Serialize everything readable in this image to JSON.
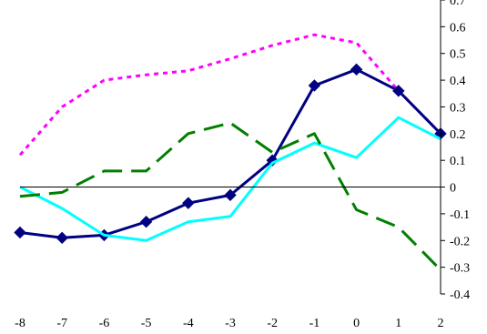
{
  "chart_data": {
    "type": "line",
    "title": "",
    "xlabel": "",
    "ylabel": "",
    "x": [
      -8,
      -7,
      -6,
      -5,
      -4,
      -3,
      -2,
      -1,
      0,
      1,
      2
    ],
    "x_tick_labels": [
      "-8",
      "-7",
      "-6",
      "-5",
      "-4",
      "-3",
      "-2",
      "-1",
      "0",
      "1",
      "2"
    ],
    "xlim": [
      -8,
      2
    ],
    "ylim": [
      -0.4,
      0.7
    ],
    "y_ticks": [
      -0.4,
      -0.3,
      -0.2,
      -0.1,
      0,
      0.1,
      0.2,
      0.3,
      0.4,
      0.5,
      0.6,
      0.7
    ],
    "y_tick_labels": [
      "-0.4",
      "-0.3",
      "-0.2",
      "-0.1",
      "0",
      "0.1",
      "0.2",
      "0.3",
      "0.4",
      "0.5",
      "0.6",
      "0.7"
    ],
    "y_axis_side": "right",
    "zero_line": true,
    "grid": false,
    "legend": "none",
    "series": [
      {
        "color": "#FF00FF",
        "style": "dotted",
        "marker": "none",
        "values": [
          0.12,
          0.3,
          0.4,
          0.42,
          0.435,
          0.48,
          0.53,
          0.57,
          0.54,
          0.36,
          0.2
        ]
      },
      {
        "color": "#000080",
        "style": "solid",
        "marker": "diamond",
        "values": [
          -0.17,
          -0.19,
          -0.18,
          -0.13,
          -0.06,
          -0.03,
          0.1,
          0.38,
          0.44,
          0.36,
          0.2
        ]
      },
      {
        "color": "#00FFFF",
        "style": "solid",
        "marker": "none",
        "values": [
          0.0,
          -0.08,
          -0.18,
          -0.2,
          -0.13,
          -0.11,
          0.09,
          0.165,
          0.11,
          0.26,
          0.18
        ]
      },
      {
        "color": "#007F00",
        "style": "dashed",
        "marker": "none",
        "values": [
          -0.035,
          -0.02,
          0.06,
          0.06,
          0.2,
          0.24,
          0.13,
          0.2,
          -0.085,
          -0.15,
          -0.31
        ]
      }
    ]
  }
}
